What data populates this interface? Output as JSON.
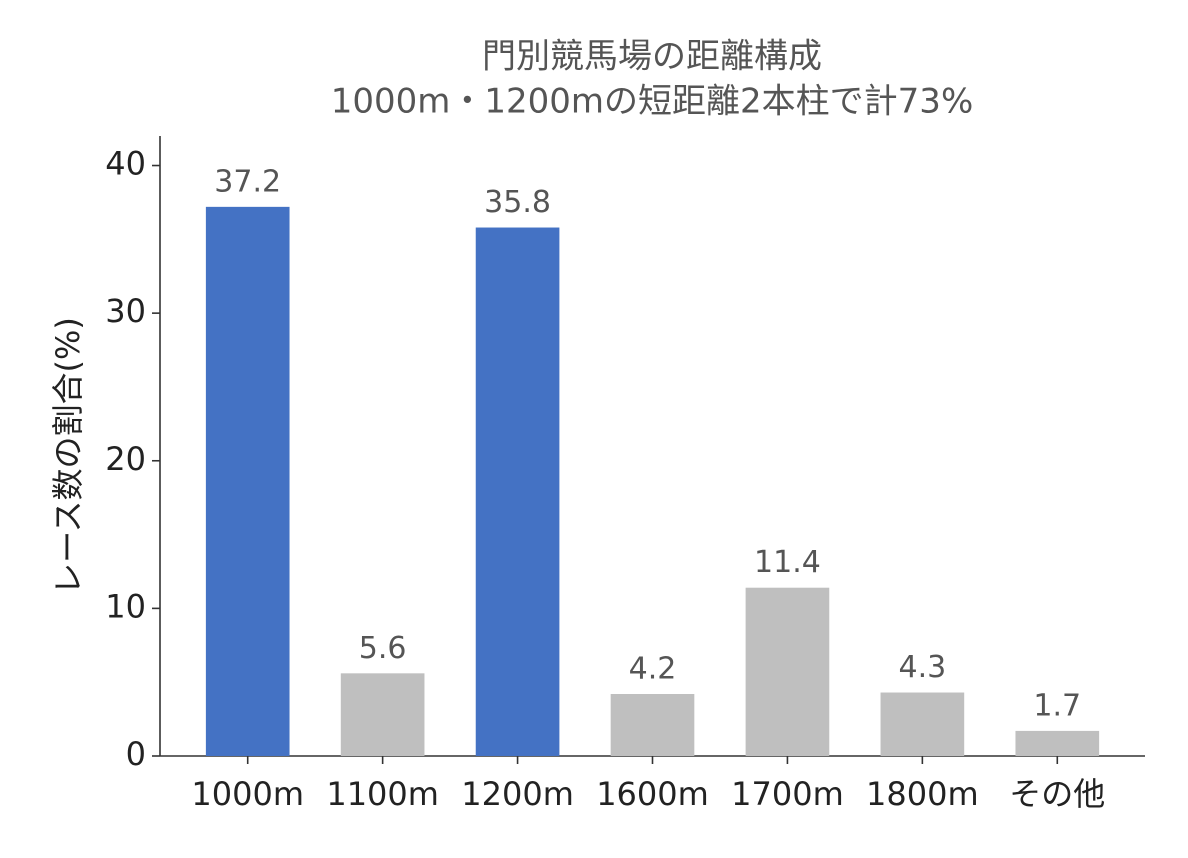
{
  "chart_data": {
    "type": "bar",
    "title": "門別競馬場の距離構成",
    "subtitle": "1000m・1200mの短距離2本柱で計73%",
    "ylabel": "レース数の割合(%)",
    "categories": [
      "1000m",
      "1100m",
      "1200m",
      "1600m",
      "1700m",
      "1800m",
      "その他"
    ],
    "values": [
      37.2,
      5.6,
      35.8,
      4.2,
      11.4,
      4.3,
      1.7
    ],
    "colors": [
      "#4472c4",
      "#bfbfbf",
      "#4472c4",
      "#bfbfbf",
      "#bfbfbf",
      "#bfbfbf",
      "#bfbfbf"
    ],
    "ylim": [
      0,
      42
    ],
    "yticks": [
      0,
      10,
      20,
      30,
      40
    ],
    "grid": false
  }
}
